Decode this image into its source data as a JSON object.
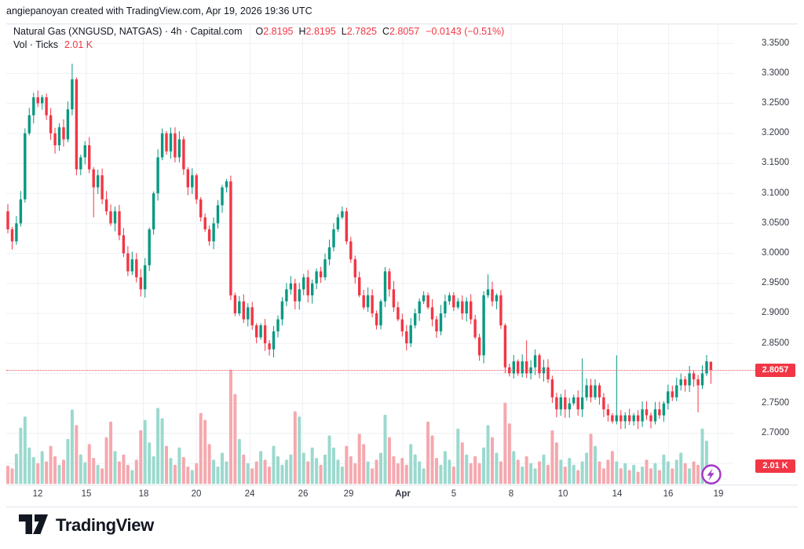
{
  "attribution": "angiepanoyan created with TradingView.com, Apr 19, 2026 19:36 UTC",
  "legend": {
    "title": "Natural Gas (XNGUSD, NATGAS) · 4h · Capital.com",
    "ohlc": [
      {
        "label": "O",
        "value": "2.8195"
      },
      {
        "label": "H",
        "value": "2.8195"
      },
      {
        "label": "L",
        "value": "2.7825"
      },
      {
        "label": "C",
        "value": "2.8057"
      }
    ],
    "change": "−0.0143 (−0.51%)",
    "volume_label": "Vol · Ticks",
    "volume_value": "2.01 K"
  },
  "price_scale": {
    "ticks": [
      "3.3500",
      "3.3000",
      "3.2500",
      "3.2000",
      "3.1500",
      "3.1000",
      "3.0500",
      "3.0000",
      "2.9500",
      "2.9000",
      "2.8500",
      "2.8000",
      "2.7500",
      "2.7000"
    ],
    "last_price_badge": "2.8057",
    "volume_badge": "2.01 K"
  },
  "time_scale": {
    "labels": [
      {
        "text": "12",
        "pos": 7
      },
      {
        "text": "15",
        "pos": 18.3
      },
      {
        "text": "18",
        "pos": 31.6
      },
      {
        "text": "20",
        "pos": 44
      },
      {
        "text": "24",
        "pos": 56.5
      },
      {
        "text": "26",
        "pos": 68.8
      },
      {
        "text": "29",
        "pos": 79.4
      },
      {
        "text": "Apr",
        "pos": 92.1,
        "bold": true
      },
      {
        "text": "5",
        "pos": 104
      },
      {
        "text": "8",
        "pos": 117.4
      },
      {
        "text": "10",
        "pos": 129.4
      },
      {
        "text": "14",
        "pos": 142.2
      },
      {
        "text": "16",
        "pos": 154.1
      },
      {
        "text": "19",
        "pos": 165.7
      }
    ]
  },
  "colors": {
    "up": "#089981",
    "down": "#f23645",
    "vol_up": "#9bd9ce",
    "vol_down": "#f5a8ae",
    "grid": "#eef0f4",
    "badge": "#f23645",
    "flash_purple": "#a435c8",
    "text": "#131722",
    "axis_text": "#363a45"
  },
  "footer": {
    "brand": "TradingView"
  },
  "chart_data": {
    "type": "candlestick_with_volume",
    "symbol": "XNGUSD",
    "interval": "4h",
    "title": "Natural Gas (XNGUSD, NATGAS) 4h — Capital.com",
    "ylim": [
      2.65,
      3.37
    ],
    "y_gridlines": [
      3.35,
      3.3,
      3.25,
      3.2,
      3.15,
      3.1,
      3.05,
      3.0,
      2.95,
      2.9,
      2.85,
      2.8,
      2.75,
      2.7,
      2.65
    ],
    "last_price": 2.8057,
    "last_candle": {
      "o": 2.8195,
      "h": 2.8195,
      "l": 2.7825,
      "c": 2.8057
    },
    "last_volume_ticks": 2010,
    "open_first": 3.07,
    "closes": [
      3.04,
      3.02,
      3.05,
      3.09,
      3.2,
      3.23,
      3.26,
      3.25,
      3.26,
      3.23,
      3.2,
      3.18,
      3.21,
      3.19,
      3.24,
      3.29,
      3.14,
      3.16,
      3.18,
      3.14,
      3.11,
      3.13,
      3.09,
      3.07,
      3.05,
      3.07,
      3.03,
      3.0,
      2.97,
      2.99,
      2.96,
      2.94,
      2.98,
      3.04,
      3.1,
      3.16,
      3.2,
      3.17,
      3.2,
      3.16,
      3.19,
      3.14,
      3.11,
      3.13,
      3.09,
      3.06,
      3.04,
      3.02,
      3.05,
      3.08,
      3.11,
      3.12,
      2.93,
      2.9,
      2.92,
      2.89,
      2.91,
      2.88,
      2.86,
      2.88,
      2.85,
      2.84,
      2.87,
      2.89,
      2.92,
      2.94,
      2.95,
      2.92,
      2.94,
      2.96,
      2.93,
      2.95,
      2.97,
      2.96,
      2.99,
      3.01,
      3.04,
      3.06,
      3.07,
      3.02,
      2.99,
      2.96,
      2.93,
      2.91,
      2.93,
      2.9,
      2.88,
      2.92,
      2.97,
      2.94,
      2.91,
      2.89,
      2.87,
      2.85,
      2.88,
      2.9,
      2.92,
      2.93,
      2.91,
      2.89,
      2.87,
      2.9,
      2.92,
      2.93,
      2.91,
      2.92,
      2.9,
      2.92,
      2.89,
      2.86,
      2.83,
      2.93,
      2.94,
      2.92,
      2.93,
      2.88,
      2.81,
      2.8,
      2.82,
      2.8,
      2.82,
      2.8,
      2.81,
      2.83,
      2.8,
      2.81,
      2.79,
      2.76,
      2.74,
      2.76,
      2.74,
      2.75,
      2.76,
      2.74,
      2.76,
      2.78,
      2.76,
      2.78,
      2.76,
      2.74,
      2.73,
      2.72,
      2.73,
      2.72,
      2.73,
      2.72,
      2.73,
      2.72,
      2.74,
      2.73,
      2.72,
      2.74,
      2.73,
      2.75,
      2.77,
      2.76,
      2.78,
      2.79,
      2.78,
      2.8,
      2.79,
      2.78,
      2.8,
      2.82,
      2.8057
    ],
    "volumes_k": [
      2.1,
      1.8,
      3.5,
      6.5,
      7.8,
      4.2,
      3.1,
      2.4,
      3.8,
      2.6,
      4.4,
      3.2,
      2.2,
      2.8,
      5.2,
      8.6,
      6.8,
      3.4,
      2.5,
      4.6,
      3.0,
      2.2,
      1.8,
      5.4,
      7.2,
      3.8,
      2.6,
      3.4,
      2.2,
      1.6,
      2.8,
      6.2,
      7.4,
      4.8,
      3.2,
      8.8,
      7.6,
      4.4,
      3.0,
      2.2,
      4.2,
      3.1,
      2.0,
      1.6,
      2.4,
      8.2,
      7.4,
      4.6,
      2.8,
      2.0,
      3.6,
      2.6,
      13.2,
      10.4,
      5.2,
      3.4,
      2.4,
      1.8,
      2.6,
      3.8,
      2.8,
      2.0,
      4.4,
      3.2,
      2.2,
      2.8,
      3.4,
      8.4,
      7.8,
      3.6,
      2.6,
      4.2,
      3.0,
      2.2,
      3.4,
      5.6,
      4.2,
      2.8,
      2.0,
      4.4,
      3.2,
      2.4,
      5.8,
      4.6,
      2.6,
      1.8,
      2.8,
      3.6,
      8.0,
      5.4,
      3.2,
      2.4,
      3.0,
      2.2,
      4.6,
      3.4,
      2.6,
      1.8,
      7.2,
      5.6,
      3.0,
      2.2,
      3.8,
      2.8,
      2.0,
      6.4,
      4.8,
      3.4,
      2.4,
      3.2,
      2.4,
      4.2,
      6.8,
      5.4,
      3.6,
      2.6,
      9.4,
      7.0,
      3.8,
      2.8,
      2.0,
      3.2,
      2.4,
      1.8,
      2.6,
      3.4,
      2.2,
      6.2,
      4.8,
      2.8,
      2.0,
      3.0,
      2.2,
      1.6,
      2.6,
      3.6,
      5.8,
      4.4,
      2.6,
      1.8,
      2.8,
      3.8,
      2.6,
      1.8,
      2.4,
      1.6,
      2.2,
      1.4,
      2.0,
      2.8,
      1.8,
      2.4,
      1.6,
      3.4,
      2.6,
      1.8,
      2.8,
      3.6,
      2.4,
      1.8,
      2.6,
      2.2,
      6.4,
      5.0,
      2.01
    ],
    "wick_overrides": {
      "15": {
        "h": 3.316
      },
      "16": {
        "l": 3.13
      },
      "20": {
        "l": 3.06
      },
      "52": {
        "l": 2.922
      },
      "112": {
        "h": 2.965
      },
      "121": {
        "h": 2.855
      },
      "134": {
        "h": 2.825
      },
      "142": {
        "h": 2.83
      },
      "161": {
        "l": 2.735
      },
      "164": {
        "o": 2.8195,
        "h": 2.8195,
        "l": 2.7825
      }
    }
  }
}
